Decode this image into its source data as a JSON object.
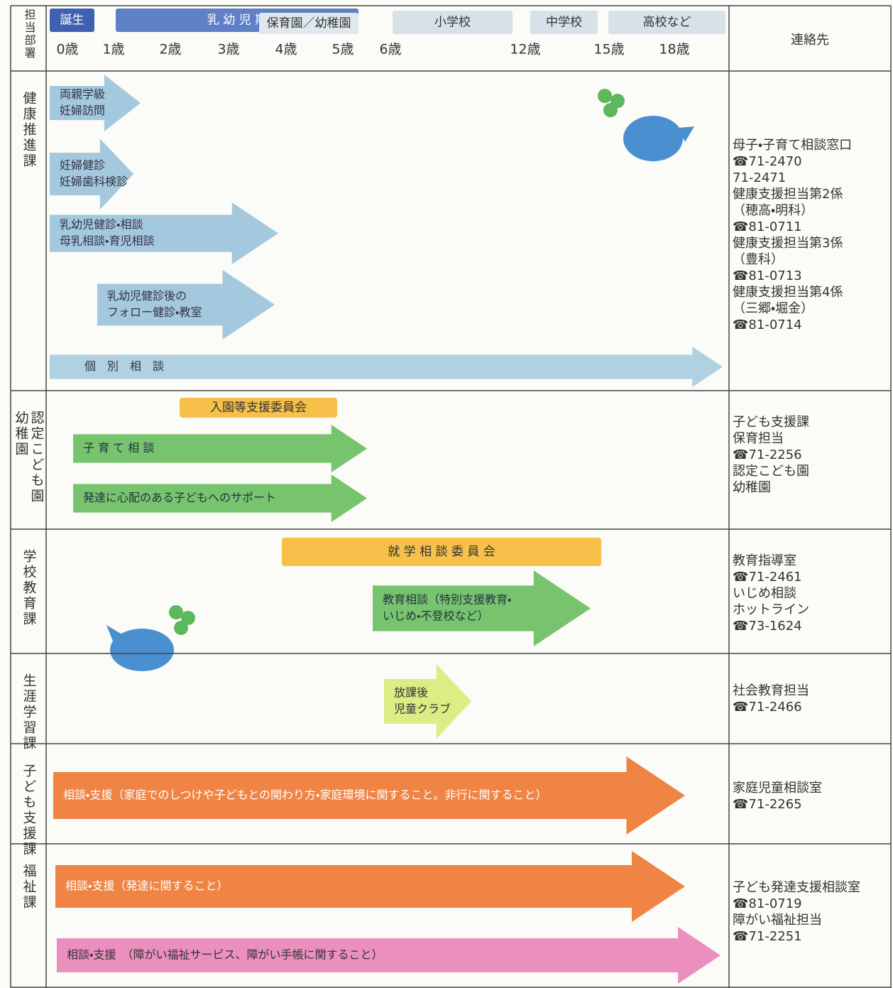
{
  "header": {
    "department": "担当部署",
    "contact": "連絡先",
    "stages": [
      "誕生",
      "乳 幼 児 期",
      "保育園／幼稚園",
      "小学校",
      "中学校",
      "高校など"
    ],
    "ages": [
      "0歳",
      "1歳",
      "2歳",
      "3歳",
      "4歳",
      "5歳",
      "6歳",
      "12歳",
      "15歳",
      "18歳"
    ]
  },
  "sections": [
    {
      "department": [
        "健康推進課"
      ],
      "banners": [],
      "arrows": [
        {
          "lines": [
            "両親学級",
            "妊婦訪問"
          ]
        },
        {
          "lines": [
            "妊婦健診",
            "妊婦歯科検診"
          ]
        },
        {
          "lines": [
            "乳幼児健診・相談",
            "母乳相談・育児相談"
          ]
        },
        {
          "lines": [
            "乳幼児健診後の",
            "フォロー健診・教室"
          ]
        },
        {
          "lines": [
            "個　別　相　談"
          ]
        }
      ],
      "contacts": [
        "母子・子育て相談窓口",
        "☎71-2470",
        "71-2471",
        "健康支援担当第2係",
        "（穂高・明科）",
        "☎81-0711",
        "健康支援担当第3係",
        "（豊科）",
        "☎81-0713",
        "健康支援担当第4係",
        "（三郷・堀金）",
        "☎81-0714"
      ]
    },
    {
      "department": [
        "認定こども園",
        "幼稚園"
      ],
      "banners": [
        "入園等支援委員会"
      ],
      "arrows": [
        {
          "lines": [
            "子 育 て 相 談"
          ]
        },
        {
          "lines": [
            "発達に心配のある子どもへのサポート"
          ]
        }
      ],
      "contacts": [
        "子ども支援課",
        "保育担当",
        "☎71-2256",
        "認定こども園",
        "幼稚園"
      ]
    },
    {
      "department": [
        "学校教育課"
      ],
      "banners": [
        "就 学 相 談 委 員 会"
      ],
      "arrows": [
        {
          "lines": [
            "教育相談（特別支援教育・",
            "いじめ・不登校など）"
          ]
        }
      ],
      "contacts": [
        "教育指導室",
        "☎71-2461",
        "いじめ相談",
        "ホットライン",
        "☎73-1624"
      ]
    },
    {
      "department": [
        "生涯学習課"
      ],
      "banners": [],
      "arrows": [
        {
          "lines": [
            "放課後",
            "児童クラブ"
          ]
        }
      ],
      "contacts": [
        "社会教育担当",
        "☎71-2466"
      ]
    },
    {
      "department": [
        "子ども支援課"
      ],
      "banners": [],
      "arrows": [
        {
          "lines": [
            "相談・支援（家庭でのしつけや子どもとの関わり方・家庭環境に関すること。非行に関すること）"
          ]
        }
      ],
      "contacts": [
        "家庭児童相談室",
        "☎71-2265"
      ]
    },
    {
      "department": [
        "福祉課"
      ],
      "banners": [],
      "arrows": [
        {
          "lines": [
            "相談・支援（発達に関すること）"
          ]
        },
        {
          "lines": [
            "相談・支援　（障がい福祉サービス、障がい手帳に関すること）"
          ]
        }
      ],
      "contacts": [
        "子ども発達支援相談室",
        "☎81-0719",
        "障がい福祉担当",
        "☎71-2251"
      ]
    }
  ]
}
